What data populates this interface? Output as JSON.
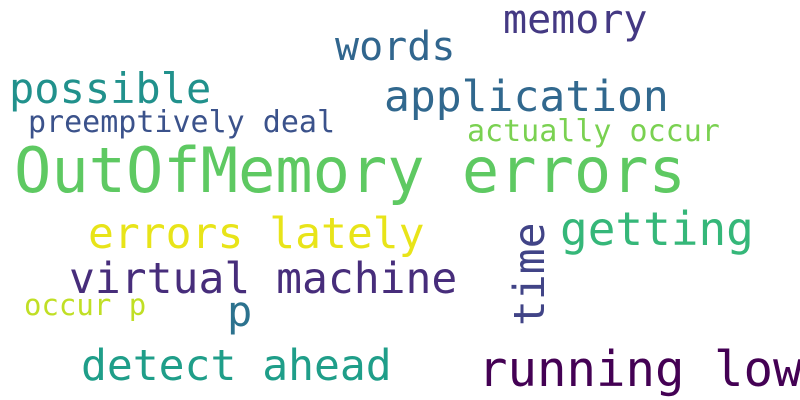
{
  "wordcloud": {
    "words": [
      {
        "key": "outofmemory",
        "text": "OutOfMemory errors",
        "color": "#5ec962"
      },
      {
        "key": "memory",
        "text": "memory",
        "color": "#443983"
      },
      {
        "key": "words",
        "text": "words",
        "color": "#31668e"
      },
      {
        "key": "possible",
        "text": "possible",
        "color": "#21918c"
      },
      {
        "key": "application",
        "text": "application",
        "color": "#31688e"
      },
      {
        "key": "preempt",
        "text": "preemptively deal",
        "color": "#3b528b"
      },
      {
        "key": "actually",
        "text": "actually occur",
        "color": "#7ad151"
      },
      {
        "key": "errors_lately",
        "text": "errors lately",
        "color": "#e8e419"
      },
      {
        "key": "getting",
        "text": "getting",
        "color": "#35b779"
      },
      {
        "key": "time",
        "text": "time",
        "color": "#414487"
      },
      {
        "key": "virtual",
        "text": "virtual machine",
        "color": "#472d7b"
      },
      {
        "key": "p",
        "text": "p",
        "color": "#2c728e"
      },
      {
        "key": "occur_p",
        "text": "occur p",
        "color": "#c0df25"
      },
      {
        "key": "detect",
        "text": "detect ahead",
        "color": "#1f9e89"
      },
      {
        "key": "running",
        "text": "running low",
        "color": "#440154"
      }
    ]
  }
}
